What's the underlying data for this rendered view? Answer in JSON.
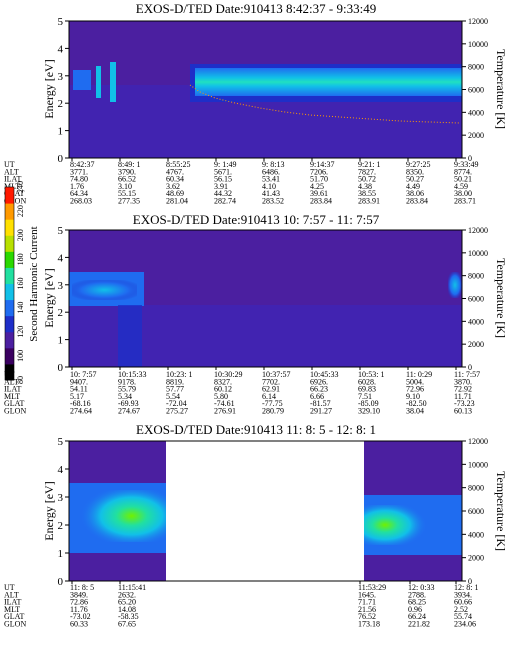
{
  "colorbar": {
    "label": "Second Harmonic Current",
    "ticks": [
      80,
      100,
      120,
      140,
      160,
      180,
      200,
      220,
      240
    ],
    "colors": [
      "#000000",
      "#3a0060",
      "#4b1fa0",
      "#1e2ec8",
      "#1f6cf0",
      "#11c0e8",
      "#21e0a0",
      "#2ad800",
      "#b8e000",
      "#ffe000",
      "#ff9a00",
      "#ff1a00"
    ]
  },
  "axis_labels": {
    "y_left": "Energy [eV]",
    "y_right": "Temperature [K]"
  },
  "chart_data": [
    {
      "type": "heatmap",
      "title": "EXOS-D/TED   Date:910413   8:42:37 - 9:33:49",
      "ylim_left": [
        0,
        5
      ],
      "yticks_left": [
        0,
        1,
        2,
        3,
        4,
        5
      ],
      "ylim_right": [
        0,
        12000
      ],
      "yticks_right": [
        0,
        2000,
        4000,
        6000,
        8000,
        10000,
        12000
      ],
      "row_labels": [
        "UT",
        "ALT",
        "ILAT",
        "MLT",
        "GLAT",
        "GLON"
      ],
      "columns": [
        [
          "8:42:37",
          "3771.",
          "74.80",
          "1.76",
          "64.34",
          "268.03"
        ],
        [
          "8:49: 1",
          "3790.",
          "66.52",
          "3.10",
          "55.15",
          "277.35"
        ],
        [
          "8:55:25",
          "4767.",
          "60.34",
          "3.62",
          "48.69",
          "281.04"
        ],
        [
          "9: 1:49",
          "5671.",
          "56.15",
          "3.91",
          "44.32",
          "282.74"
        ],
        [
          "9: 8:13",
          "6486.",
          "53.41",
          "4.10",
          "41.43",
          "283.52"
        ],
        [
          "9:14:37",
          "7206.",
          "51.70",
          "4.25",
          "39.61",
          "283.84"
        ],
        [
          "9:21: 1",
          "7827.",
          "50.72",
          "4.38",
          "38.55",
          "283.91"
        ],
        [
          "9:27:25",
          "8350.",
          "50.27",
          "4.49",
          "38.06",
          "283.84"
        ],
        [
          "9:33:49",
          "8774.",
          "50.21",
          "4.59",
          "38.00",
          "283.71"
        ]
      ]
    },
    {
      "type": "heatmap",
      "title": "EXOS-D/TED   Date:910413   10: 7:57 - 11: 7:57",
      "ylim_left": [
        0,
        5
      ],
      "yticks_left": [
        0,
        1,
        2,
        3,
        4,
        5
      ],
      "ylim_right": [
        0,
        12000
      ],
      "yticks_right": [
        0,
        2000,
        4000,
        6000,
        8000,
        10000,
        12000
      ],
      "row_labels": [
        "UT",
        "ALT",
        "ILAT",
        "MLT",
        "GLAT",
        "GLON"
      ],
      "columns": [
        [
          "10: 7:57",
          "9407.",
          "54.11",
          "5.17",
          "-68.16",
          "274.64"
        ],
        [
          "10:15:33",
          "9178.",
          "55.79",
          "5.34",
          "-69.93",
          "274.67"
        ],
        [
          "10:23: 1",
          "8819.",
          "57.77",
          "5.54",
          "-72.04",
          "275.27"
        ],
        [
          "10:30:29",
          "8327.",
          "60.12",
          "5.80",
          "-74.61",
          "276.91"
        ],
        [
          "10:37:57",
          "7702.",
          "62.91",
          "6.14",
          "-77.75",
          "280.79"
        ],
        [
          "10:45:33",
          "6926.",
          "66.23",
          "6.66",
          "-81.57",
          "291.27"
        ],
        [
          "10:53: 1",
          "6028.",
          "69.83",
          "7.51",
          "-85.09",
          "329.10"
        ],
        [
          "11: 0:29",
          "5004.",
          "72.96",
          "9.10",
          "-82.50",
          "38.04"
        ],
        [
          "11: 7:57",
          "3870.",
          "72.92",
          "11.71",
          "-73.23",
          "60.13"
        ]
      ]
    },
    {
      "type": "heatmap",
      "title": "EXOS-D/TED   Date:910413   11: 8: 5 - 12: 8: 1",
      "ylim_left": [
        0,
        5
      ],
      "yticks_left": [
        0,
        1,
        2,
        3,
        4,
        5
      ],
      "ylim_right": [
        0,
        12000
      ],
      "yticks_right": [
        0,
        2000,
        4000,
        6000,
        8000,
        10000,
        12000
      ],
      "row_labels": [
        "UT",
        "ALT",
        "ILAT",
        "MLT",
        "GLAT",
        "GLON"
      ],
      "columns": [
        [
          "11: 8: 5",
          "3849.",
          "72.86",
          "11.76",
          "-73.02",
          "60.33"
        ],
        [
          "11:15:41",
          "2632.",
          "65.20",
          "14.08",
          "-58.35",
          "67.65"
        ],
        [
          "11:53:29",
          "1645.",
          "71.71",
          "21.56",
          "76.52",
          "173.18"
        ],
        [
          "12: 0:33",
          "2788.",
          "68.25",
          "0.96",
          "66.24",
          "221.82"
        ],
        [
          "12: 8: 1",
          "3934.",
          "60.66",
          "2.52",
          "55.74",
          "234.06"
        ]
      ]
    }
  ]
}
